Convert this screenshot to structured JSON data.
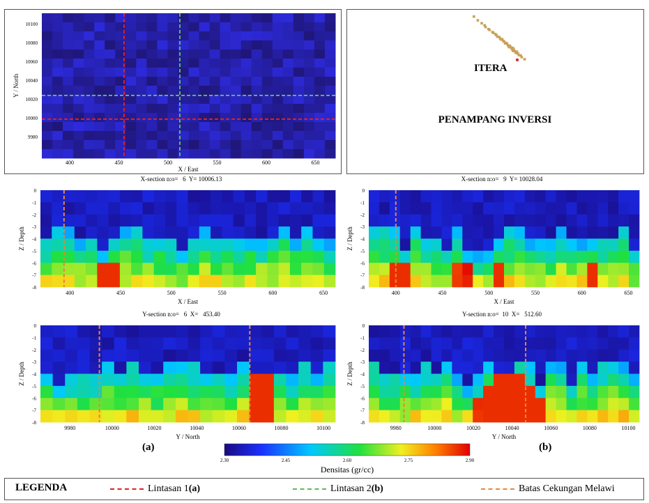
{
  "colors": {
    "background": "#22104a",
    "red_line": "#e02020",
    "green_line": "#5cb85c",
    "orange_line": "#e8853a",
    "logo_gold": "#c8a15a",
    "logo_dot": "#d03030"
  },
  "logo": {
    "text": "ITERA"
  },
  "right_panel": {
    "title": "PENAMPANG INVERSI"
  },
  "map_panel": {
    "xlabel": "X / East",
    "ylabel": "Y / North",
    "x_ticks": [
      "400",
      "450",
      "500",
      "550",
      "600",
      "650"
    ],
    "y_ticks": [
      "10100",
      "10080",
      "10060",
      "10040",
      "10020",
      "10000",
      "9980"
    ]
  },
  "sections": [
    {
      "id": "xsec-left",
      "title": "X-section n:o=   6  Y= 10006.13",
      "xlabel": "X / East",
      "ylabel": "Z / Depth",
      "x_ticks": [
        "400",
        "450",
        "500",
        "550",
        "600",
        "650"
      ],
      "z_ticks": [
        "0",
        "-1",
        "-2",
        "-3",
        "-4",
        "-5",
        "-6",
        "-7",
        "-8"
      ]
    },
    {
      "id": "xsec-right",
      "title": "X-section n:o=   9  Y= 10028.04",
      "xlabel": "X / East",
      "ylabel": "Z / Depth",
      "x_ticks": [
        "400",
        "450",
        "500",
        "550",
        "600",
        "650"
      ],
      "z_ticks": [
        "0",
        "-1",
        "-2",
        "-3",
        "-4",
        "-5",
        "-6",
        "-7",
        "-8"
      ]
    },
    {
      "id": "ysec-left",
      "title": "Y-section n:o=   6  X=   453.40",
      "xlabel": "Y / North",
      "ylabel": "Z / Depth",
      "x_ticks": [
        "9980",
        "10000",
        "10020",
        "10040",
        "10060",
        "10080",
        "10100"
      ],
      "z_ticks": [
        "0",
        "-1",
        "-2",
        "-3",
        "-4",
        "-5",
        "-6",
        "-7",
        "-8"
      ]
    },
    {
      "id": "ysec-right",
      "title": "Y-section n:o=  10  X=   512.60",
      "xlabel": "Y / North",
      "ylabel": "Z / Depth",
      "x_ticks": [
        "9980",
        "10000",
        "10020",
        "10040",
        "10060",
        "10080",
        "10100"
      ],
      "z_ticks": [
        "0",
        "-1",
        "-2",
        "-3",
        "-4",
        "-5",
        "-6",
        "-7",
        "-8"
      ]
    }
  ],
  "labels": {
    "a": "(a)",
    "b": "(b)"
  },
  "colorbar": {
    "ticks": [
      "2.30",
      "2.45",
      "2.60",
      "2.75",
      "2.90"
    ],
    "title": "Densitas (gr/cc)"
  },
  "legend": {
    "title": "LEGENDA",
    "items": [
      {
        "prefix": "Lintasan 1 ",
        "bold": "(a)",
        "color": "#e02020"
      },
      {
        "prefix": "Lintasan 2 ",
        "bold": "(b)",
        "color": "#5cb85c"
      },
      {
        "prefix": "Batas Cekungan Melawi",
        "bold": "",
        "color": "#e8853a"
      }
    ]
  }
}
